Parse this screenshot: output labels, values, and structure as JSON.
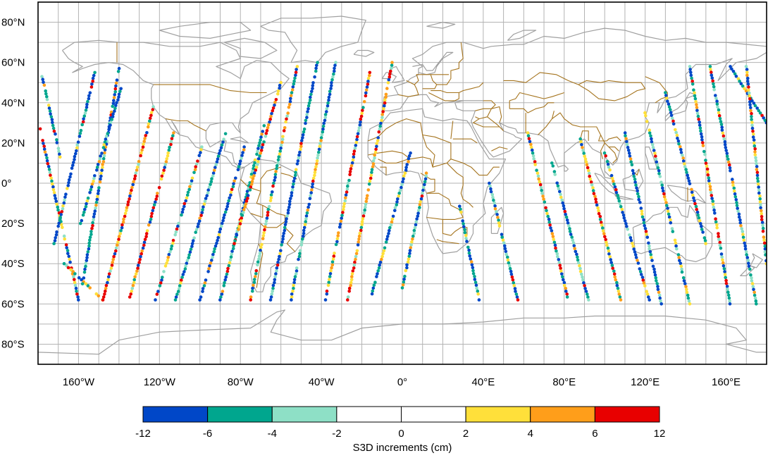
{
  "map": {
    "projection": "plate-carree",
    "lon_range": [
      -180,
      180
    ],
    "lat_range": [
      -90,
      90
    ],
    "gridlines": true,
    "lat_ticks": [
      {
        "value": 80,
        "label": "80°N"
      },
      {
        "value": 60,
        "label": "60°N"
      },
      {
        "value": 40,
        "label": "40°N"
      },
      {
        "value": 20,
        "label": "20°N"
      },
      {
        "value": 0,
        "label": "0°"
      },
      {
        "value": -20,
        "label": "20°S"
      },
      {
        "value": -40,
        "label": "40°S"
      },
      {
        "value": -60,
        "label": "60°S"
      },
      {
        "value": -80,
        "label": "80°S"
      }
    ],
    "lon_ticks": [
      {
        "value": -160,
        "label": "160°W"
      },
      {
        "value": -120,
        "label": "120°W"
      },
      {
        "value": -80,
        "label": "80°W"
      },
      {
        "value": -40,
        "label": "40°W"
      },
      {
        "value": 0,
        "label": "0°"
      },
      {
        "value": 40,
        "label": "40°E"
      },
      {
        "value": 80,
        "label": "80°E"
      },
      {
        "value": 120,
        "label": "120°E"
      },
      {
        "value": 160,
        "label": "160°E"
      }
    ],
    "coastline_color": "#a0a0a0",
    "border_color": "#a5741e"
  },
  "chart_data": {
    "type": "scatter",
    "title": "",
    "description_of_marks": "along-track satellite altimeter points coloured by S3D increment",
    "tracks": [
      {
        "lon_start": -179,
        "lat_start": 27,
        "lon_end": -160,
        "lat_end": -58,
        "bias": 0
      },
      {
        "lon_start": -178,
        "lat_start": 53,
        "lon_end": -169,
        "lat_end": 13,
        "bias": -1
      },
      {
        "lon_start": -167,
        "lat_start": -40,
        "lon_end": -148,
        "lat_end": -58,
        "bias": 1
      },
      {
        "lon_start": -152,
        "lat_start": 55,
        "lon_end": -172,
        "lat_end": -30,
        "bias": -2
      },
      {
        "lon_start": -140,
        "lat_start": 57,
        "lon_end": -158,
        "lat_end": -50,
        "bias": -1
      },
      {
        "lon_start": -139,
        "lat_start": 47,
        "lon_end": -159,
        "lat_end": -20,
        "bias": -2
      },
      {
        "lon_start": -123,
        "lat_start": 38,
        "lon_end": -148,
        "lat_end": -58,
        "bias": 2
      },
      {
        "lon_start": -113,
        "lat_start": 25,
        "lon_end": -135,
        "lat_end": -58,
        "bias": 1
      },
      {
        "lon_start": -99,
        "lat_start": 18,
        "lon_end": -122,
        "lat_end": -58,
        "bias": 0
      },
      {
        "lon_start": -87,
        "lat_start": 26,
        "lon_end": -112,
        "lat_end": -58,
        "bias": -1
      },
      {
        "lon_start": -78,
        "lat_start": 18,
        "lon_end": -100,
        "lat_end": -58,
        "bias": -2
      },
      {
        "lon_start": -68,
        "lat_start": 30,
        "lon_end": -90,
        "lat_end": -58,
        "bias": -1
      },
      {
        "lon_start": -60,
        "lat_start": 50,
        "lon_end": -83,
        "lat_end": -30,
        "bias": 1
      },
      {
        "lon_start": -52,
        "lat_start": 58,
        "lon_end": -75,
        "lat_end": -58,
        "bias": 0
      },
      {
        "lon_start": -42,
        "lat_start": 60,
        "lon_end": -65,
        "lat_end": -58,
        "bias": -2
      },
      {
        "lon_start": -33,
        "lat_start": 60,
        "lon_end": -55,
        "lat_end": -58,
        "bias": -1
      },
      {
        "lon_start": -16,
        "lat_start": 55,
        "lon_end": -38,
        "lat_end": -58,
        "bias": 0
      },
      {
        "lon_start": -5,
        "lat_start": 60,
        "lon_end": -27,
        "lat_end": -58,
        "bias": 1
      },
      {
        "lon_start": 4,
        "lat_start": 15,
        "lon_end": -15,
        "lat_end": -55,
        "bias": -1
      },
      {
        "lon_start": 12,
        "lat_start": 5,
        "lon_end": 0,
        "lat_end": -52,
        "bias": -1
      },
      {
        "lon_start": 28,
        "lat_start": -10,
        "lon_end": 38,
        "lat_end": -58,
        "bias": -1
      },
      {
        "lon_start": 43,
        "lat_start": 0,
        "lon_end": 57,
        "lat_end": -58,
        "bias": -1
      },
      {
        "lon_start": 62,
        "lat_start": 25,
        "lon_end": 82,
        "lat_end": -58,
        "bias": 0
      },
      {
        "lon_start": 74,
        "lat_start": 10,
        "lon_end": 92,
        "lat_end": -58,
        "bias": -1
      },
      {
        "lon_start": 88,
        "lat_start": 22,
        "lon_end": 108,
        "lat_end": -58,
        "bias": 1
      },
      {
        "lon_start": 100,
        "lat_start": 15,
        "lon_end": 122,
        "lat_end": -58,
        "bias": -1
      },
      {
        "lon_start": 110,
        "lat_start": 25,
        "lon_end": 128,
        "lat_end": -60,
        "bias": -2
      },
      {
        "lon_start": 120,
        "lat_start": 35,
        "lon_end": 142,
        "lat_end": -60,
        "bias": 0
      },
      {
        "lon_start": 130,
        "lat_start": 45,
        "lon_end": 150,
        "lat_end": -30,
        "bias": -1
      },
      {
        "lon_start": 142,
        "lat_start": 58,
        "lon_end": 162,
        "lat_end": -60,
        "bias": 0
      },
      {
        "lon_start": 152,
        "lat_start": 58,
        "lon_end": 175,
        "lat_end": -60,
        "bias": -1
      },
      {
        "lon_start": 162,
        "lat_start": 58,
        "lon_end": 180,
        "lat_end": 30,
        "bias": -2
      },
      {
        "lon_start": 170,
        "lat_start": 58,
        "lon_end": 180,
        "lat_end": -40,
        "bias": 0
      }
    ]
  },
  "colorbar": {
    "ticks": [
      "-12",
      "-6",
      "-4",
      "-2",
      "0",
      "2",
      "4",
      "6",
      "12"
    ],
    "colors": [
      "#0047c8",
      "#00a68e",
      "#8ee0c6",
      "#ffffff",
      "#ffffff",
      "#ffe03a",
      "#ff9e1a",
      "#e80000"
    ],
    "title": "S3D increments (cm)"
  }
}
